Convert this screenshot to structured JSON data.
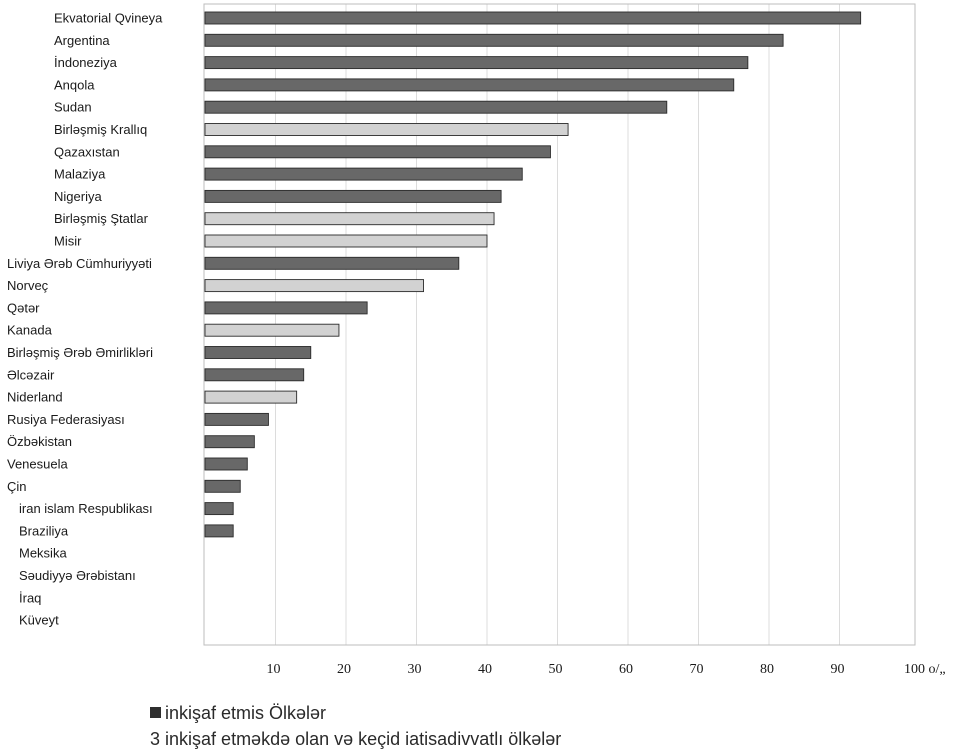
{
  "chart_data": {
    "type": "bar",
    "orientation": "horizontal",
    "categories": [
      "Ekvatorial Qvineya",
      "Argentina",
      "İndoneziya",
      "Anqola",
      "Sudan",
      "Birləşmiş Krallıq",
      "Qazaxıstan",
      "Malaziya",
      "Nigeriya",
      "Birləşmiş Ştatlar",
      "Misir",
      "Liviya Ərəb Cümhuriyyəti",
      "Norveç",
      "Qətər",
      "Kanada",
      "Birləşmiş Ərəb Əmirlikləri",
      "Əlcəzair",
      "Niderland",
      "Rusiya Federasiyası",
      "Özbəkistan",
      "Venesuela",
      "Çin",
      "iran islam Respublikası",
      "Braziliya",
      "Meksika",
      "Səudiyyə Ərəbistanı",
      "İraq",
      "Küveyt"
    ],
    "values": [
      93,
      82,
      77,
      75,
      65.5,
      51.5,
      49,
      45,
      42,
      41,
      40,
      36,
      31,
      23,
      19,
      15,
      14,
      13,
      9,
      7,
      6,
      5,
      4,
      4,
      0,
      0,
      0,
      0
    ],
    "group": [
      "d",
      "d",
      "d",
      "d",
      "d",
      "i",
      "d",
      "d",
      "d",
      "i",
      "i",
      "d",
      "i",
      "d",
      "i",
      "d",
      "d",
      "i",
      "d",
      "d",
      "d",
      "d",
      "d",
      "d",
      "d",
      "d",
      "d",
      "d"
    ],
    "group_colors": {
      "d": "#686868",
      "i": "#d2d2d2"
    },
    "xlim": [
      0,
      100
    ],
    "xticks": [
      "10",
      "20",
      "30",
      "40",
      "50",
      "60",
      "70",
      "80",
      "90",
      "100 o/„"
    ],
    "grid": true,
    "legend": [
      {
        "marker": "■",
        "label": "inkişaf etmis Ölkələr"
      },
      {
        "marker": "3",
        "label": "inkişaf etməkdə olan və keçid iatisadivvatlı ölkələr"
      }
    ]
  }
}
